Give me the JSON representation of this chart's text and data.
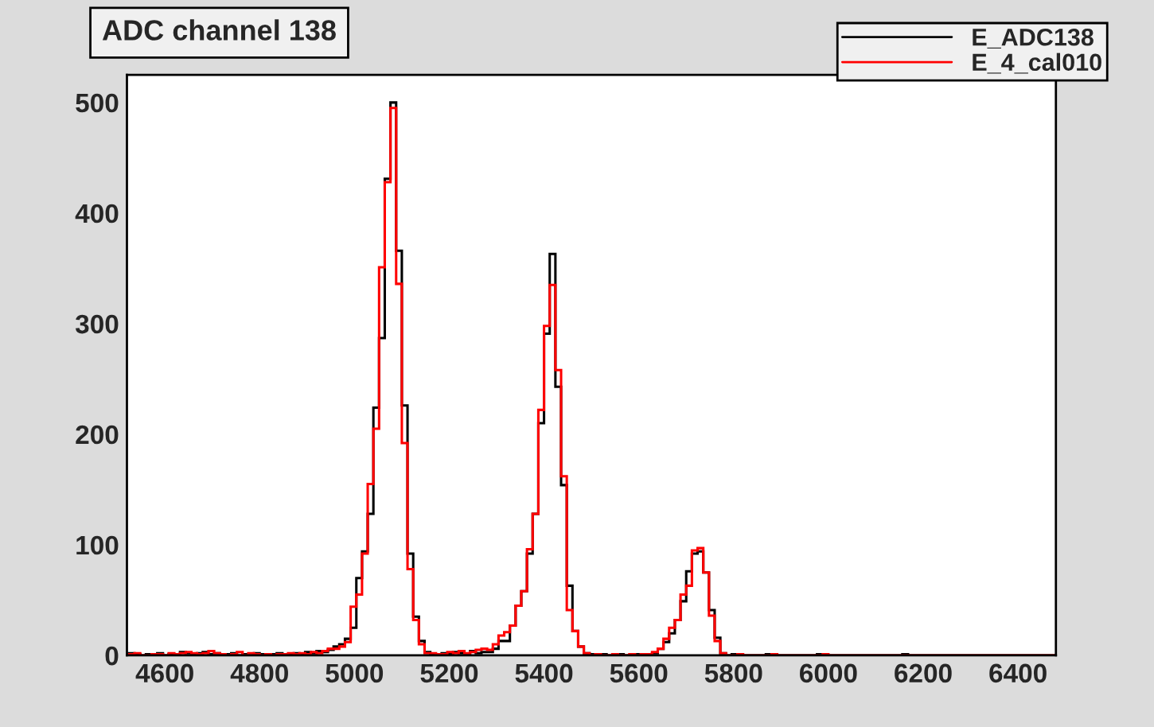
{
  "chart_data": {
    "type": "histogram",
    "title": "ADC channel 138",
    "bins": [
      4524,
      4536,
      4548,
      4560,
      4572,
      4584,
      4596,
      4608,
      4620,
      4632,
      4644,
      4656,
      4668,
      4680,
      4692,
      4704,
      4716,
      4728,
      4740,
      4752,
      4764,
      4776,
      4788,
      4800,
      4812,
      4824,
      4836,
      4848,
      4860,
      4872,
      4884,
      4896,
      4908,
      4920,
      4932,
      4944,
      4956,
      4968,
      4980,
      4992,
      5004,
      5016,
      5028,
      5040,
      5052,
      5064,
      5076,
      5088,
      5100,
      5112,
      5124,
      5136,
      5148,
      5160,
      5172,
      5184,
      5196,
      5208,
      5220,
      5232,
      5244,
      5256,
      5268,
      5280,
      5292,
      5304,
      5316,
      5328,
      5340,
      5352,
      5364,
      5376,
      5388,
      5400,
      5412,
      5424,
      5436,
      5448,
      5460,
      5472,
      5484,
      5496,
      5508,
      5520,
      5532,
      5544,
      5556,
      5568,
      5580,
      5592,
      5604,
      5616,
      5628,
      5640,
      5652,
      5664,
      5676,
      5688,
      5700,
      5712,
      5724,
      5736,
      5748,
      5760,
      5772,
      5784,
      5796,
      5808,
      5820,
      5832,
      5844,
      5856,
      5868,
      5880,
      5892,
      5904,
      5916,
      5928,
      5940,
      5952,
      5964,
      5976,
      5988,
      6000,
      6012,
      6024,
      6036,
      6048,
      6060,
      6072,
      6084,
      6096,
      6108,
      6120,
      6132,
      6144,
      6156,
      6168,
      6180,
      6192,
      6204,
      6216,
      6228,
      6240,
      6252,
      6264,
      6276,
      6288,
      6300,
      6312,
      6324,
      6336,
      6348,
      6360,
      6372,
      6384,
      6396,
      6408,
      6420,
      6432,
      6444,
      6456,
      6468,
      6480
    ],
    "series": [
      {
        "name": "E_ADC138",
        "color": "#000000",
        "values": [
          2,
          1,
          0,
          1,
          0,
          2,
          0,
          1,
          0,
          3,
          2,
          1,
          2,
          3,
          1,
          2,
          0,
          1,
          2,
          0,
          1,
          0,
          2,
          1,
          0,
          1,
          2,
          0,
          1,
          2,
          1,
          3,
          2,
          4,
          3,
          5,
          8,
          10,
          15,
          25,
          70,
          94,
          128,
          224,
          287,
          431,
          500,
          366,
          226,
          92,
          35,
          13,
          3,
          1,
          0,
          2,
          1,
          3,
          2,
          1,
          4,
          2,
          3,
          3,
          6,
          13,
          13,
          27,
          45,
          58,
          92,
          128,
          210,
          291,
          363,
          243,
          154,
          63,
          22,
          8,
          2,
          1,
          0,
          1,
          0,
          0,
          1,
          0,
          0,
          1,
          0,
          1,
          2,
          6,
          12,
          20,
          32,
          49,
          76,
          92,
          94,
          75,
          41,
          16,
          2,
          0,
          1,
          0,
          0,
          0,
          0,
          0,
          1,
          0,
          0,
          0,
          0,
          0,
          0,
          0,
          0,
          1,
          0,
          0,
          0,
          0,
          0,
          0,
          0,
          0,
          0,
          0,
          0,
          0,
          0,
          0,
          1,
          0,
          0,
          0,
          0,
          0,
          0,
          0,
          0,
          0,
          0,
          0,
          0,
          0,
          0,
          0,
          0,
          0,
          0,
          0,
          0,
          0,
          0,
          0,
          0,
          0,
          0
        ]
      },
      {
        "name": "E_4_cal010",
        "color": "#ff0000",
        "values": [
          1,
          2,
          0,
          0,
          1,
          1,
          0,
          2,
          1,
          2,
          3,
          2,
          1,
          2,
          4,
          2,
          1,
          0,
          1,
          3,
          0,
          2,
          1,
          0,
          1,
          0,
          1,
          1,
          2,
          1,
          2,
          1,
          3,
          2,
          4,
          6,
          6,
          8,
          12,
          44,
          55,
          92,
          155,
          205,
          351,
          428,
          495,
          336,
          192,
          78,
          32,
          10,
          2,
          2,
          1,
          1,
          3,
          2,
          4,
          2,
          3,
          5,
          6,
          5,
          10,
          18,
          21,
          27,
          45,
          58,
          96,
          128,
          222,
          298,
          335,
          258,
          162,
          41,
          22,
          8,
          2,
          0,
          1,
          0,
          0,
          1,
          0,
          0,
          1,
          0,
          1,
          1,
          3,
          6,
          15,
          25,
          32,
          55,
          63,
          95,
          97,
          75,
          36,
          13,
          2,
          0,
          0,
          1,
          0,
          0,
          0,
          0,
          0,
          1,
          0,
          0,
          0,
          0,
          0,
          0,
          0,
          0,
          1,
          0,
          0,
          0,
          0,
          0,
          0,
          0,
          0,
          0,
          0,
          0,
          0,
          0,
          0,
          0,
          0,
          0,
          0,
          0,
          0,
          0,
          0,
          0,
          0,
          0,
          0,
          0,
          0,
          0,
          0,
          0,
          0,
          0,
          0,
          0,
          0,
          0,
          0,
          0,
          0
        ]
      }
    ],
    "xlim": [
      4520,
      6480
    ],
    "xticks": [
      4600,
      4800,
      5000,
      5200,
      5400,
      5600,
      5800,
      6000,
      6200,
      6400
    ],
    "ylim": [
      0,
      525
    ],
    "yticks": [
      0,
      100,
      200,
      300,
      400,
      500
    ],
    "legend": "top right",
    "grid": false
  }
}
